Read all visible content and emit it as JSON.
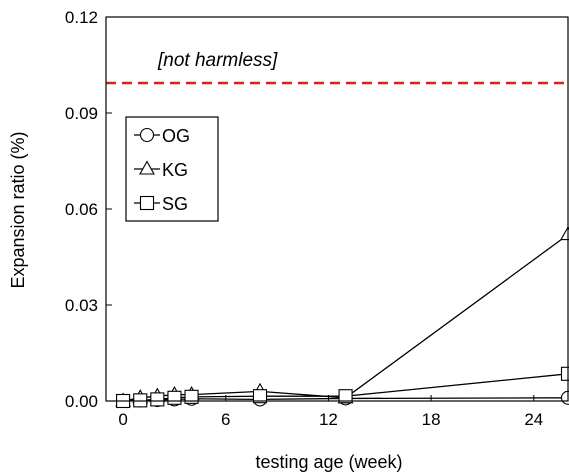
{
  "chart_data": {
    "type": "line",
    "title": "",
    "xlabel": "testing age (week)",
    "ylabel": "Expansion ratio (%)",
    "xlim": [
      -1,
      26
    ],
    "ylim": [
      0,
      0.12
    ],
    "xticks": [
      "0",
      "6",
      "12",
      "18",
      "24"
    ],
    "yticks": [
      "0.00",
      "0.03",
      "0.06",
      "0.09",
      "0.12"
    ],
    "grid": false,
    "legend_position": "top-left",
    "threshold": {
      "value": 0.1,
      "label": "[not harmless]",
      "color": "#e02020",
      "style": "dashed"
    },
    "series": [
      {
        "name": "OG",
        "marker": "circle",
        "x": [
          0,
          1,
          2,
          3,
          4,
          8,
          13,
          26
        ],
        "y": [
          0.0,
          0.0002,
          0.0003,
          0.0005,
          0.0007,
          0.0005,
          0.0008,
          0.001
        ]
      },
      {
        "name": "KG",
        "marker": "triangle",
        "x": [
          0,
          1,
          2,
          3,
          4,
          8,
          13,
          26
        ],
        "y": [
          0.0,
          0.001,
          0.0015,
          0.002,
          0.002,
          0.003,
          0.001,
          0.052
        ]
      },
      {
        "name": "SG",
        "marker": "square",
        "x": [
          0,
          1,
          2,
          3,
          4,
          8,
          13,
          26
        ],
        "y": [
          0.0,
          0.0002,
          0.0005,
          0.001,
          0.0013,
          0.0015,
          0.0015,
          0.0085
        ]
      }
    ]
  }
}
